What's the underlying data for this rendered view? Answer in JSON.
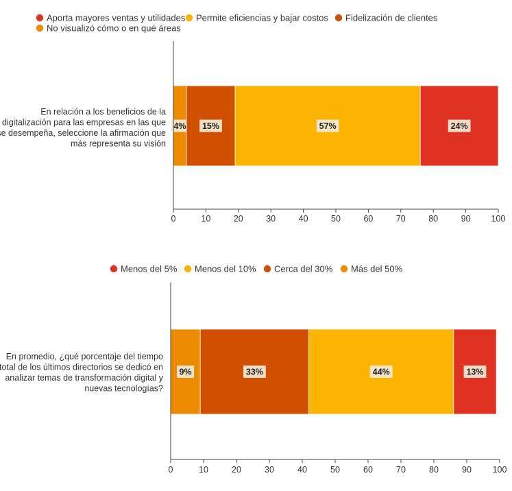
{
  "colors": {
    "red": "#E03222",
    "yellow": "#FBB500",
    "darkorange": "#D14F00",
    "orange": "#EC8A00",
    "axis": "#444444",
    "label_bg": "#F2E9D6"
  },
  "chart_data": [
    {
      "type": "bar",
      "orientation": "horizontal-stacked",
      "title": "",
      "question_lines": [
        "En relación a los beneficios de la",
        "digitalización para las empresas en las que",
        "se desempeña, seleccione la afirmación que",
        "más representa su visión"
      ],
      "legend": [
        {
          "name": "Aporta mayores ventas y utilidades",
          "color": "red"
        },
        {
          "name": "Permite eficiencias y bajar costos",
          "color": "yellow"
        },
        {
          "name": "Fidelización de clientes",
          "color": "darkorange"
        },
        {
          "name": "No visualizó cómo o en qué áreas",
          "color": "orange"
        }
      ],
      "legend_position": "top-left",
      "segments": [
        {
          "series": "No visualizó cómo o en qué áreas",
          "value": 4,
          "label": "4%",
          "color": "orange"
        },
        {
          "series": "Fidelización de clientes",
          "value": 15,
          "label": "15%",
          "color": "darkorange"
        },
        {
          "series": "Permite eficiencias y bajar costos",
          "value": 57,
          "label": "57%",
          "color": "yellow"
        },
        {
          "series": "Aporta mayores ventas y utilidades",
          "value": 24,
          "label": "24%",
          "color": "red"
        }
      ],
      "xlim": [
        0,
        100
      ],
      "xticks": [
        "0",
        "10",
        "20",
        "30",
        "40",
        "50",
        "60",
        "70",
        "80",
        "90",
        "100"
      ],
      "grid": false
    },
    {
      "type": "bar",
      "orientation": "horizontal-stacked",
      "title": "",
      "question_lines": [
        "En promedio, ¿qué porcentaje del tiempo",
        "total de los últimos directorios se dedicó en",
        "analizar temas de transformación digital y",
        "nuevas tecnologías?"
      ],
      "legend": [
        {
          "name": "Menos del 5%",
          "color": "red"
        },
        {
          "name": "Menos del 10%",
          "color": "yellow"
        },
        {
          "name": "Cerca del 30%",
          "color": "darkorange"
        },
        {
          "name": "Más del 50%",
          "color": "orange"
        }
      ],
      "legend_position": "top-center",
      "segments": [
        {
          "series": "Más del 50%",
          "value": 9,
          "label": "9%",
          "color": "orange"
        },
        {
          "series": "Cerca del 30%",
          "value": 33,
          "label": "33%",
          "color": "darkorange"
        },
        {
          "series": "Menos del 10%",
          "value": 44,
          "label": "44%",
          "color": "yellow"
        },
        {
          "series": "Menos del 5%",
          "value": 13,
          "label": "13%",
          "color": "red"
        }
      ],
      "xlim": [
        0,
        100
      ],
      "xticks": [
        "0",
        "10",
        "20",
        "30",
        "40",
        "50",
        "60",
        "70",
        "80",
        "90",
        "100"
      ],
      "grid": false
    }
  ]
}
